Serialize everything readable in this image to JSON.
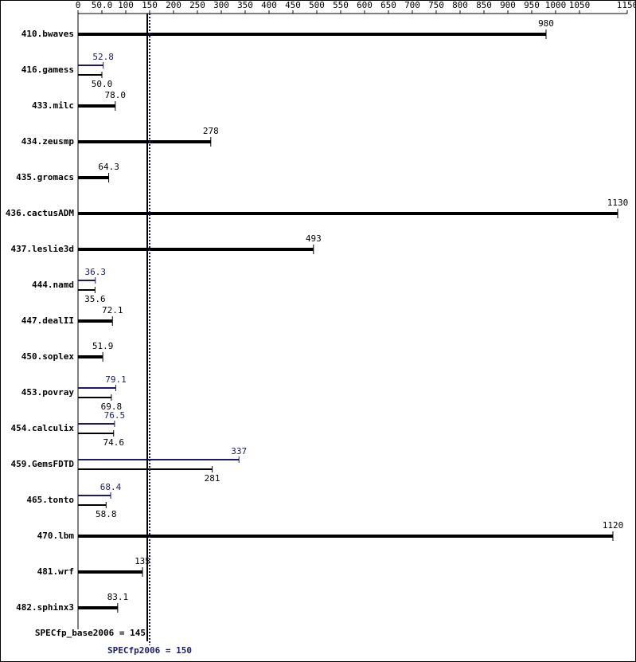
{
  "chart_data": {
    "type": "bar",
    "categories": [
      "410.bwaves",
      "416.gamess",
      "433.milc",
      "434.zeusmp",
      "435.gromacs",
      "436.cactusADM",
      "437.leslie3d",
      "444.namd",
      "447.dealII",
      "450.soplex",
      "453.povray",
      "454.calculix",
      "459.GemsFDTD",
      "465.tonto",
      "470.lbm",
      "481.wrf",
      "482.sphinx3"
    ],
    "series": [
      {
        "color": "#000000",
        "values": [
          980,
          50.0,
          78.0,
          278,
          64.3,
          1130,
          493,
          35.6,
          72.1,
          51.9,
          69.8,
          74.6,
          281,
          58.8,
          1120,
          135,
          83.1
        ],
        "value_labels": [
          "980",
          "50.0",
          "78.0",
          "278",
          "64.3",
          "1130",
          "493",
          "35.6",
          "72.1",
          "51.9",
          "69.8",
          "74.6",
          "281",
          "58.8",
          "1120",
          "135",
          "83.1"
        ]
      },
      {
        "color": "#191970",
        "values": [
          null,
          52.8,
          null,
          null,
          null,
          null,
          null,
          36.3,
          null,
          null,
          79.1,
          76.5,
          337,
          68.4,
          null,
          null,
          null
        ],
        "value_labels": [
          null,
          "52.8",
          null,
          null,
          null,
          null,
          null,
          "36.3",
          null,
          null,
          "79.1",
          "76.5",
          "337",
          "68.4",
          null,
          null,
          null
        ]
      }
    ],
    "xlim": [
      0,
      1150
    ],
    "xticks": [
      0,
      {
        "value": 50,
        "label": "50.0"
      },
      100,
      150,
      200,
      250,
      300,
      350,
      400,
      450,
      500,
      550,
      600,
      650,
      700,
      750,
      800,
      850,
      900,
      950,
      1000,
      1050,
      1150
    ],
    "reference_lines": [
      {
        "label": "SPECfp_base2006 = 145",
        "value": 145,
        "color": "#000000"
      },
      {
        "label": "SPECfp2006 = 150",
        "value": 150,
        "color": "#191970"
      }
    ]
  }
}
